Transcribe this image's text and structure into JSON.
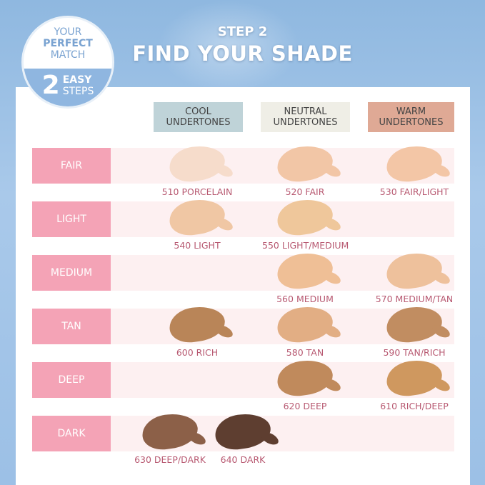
{
  "badge": {
    "line1": "YOUR",
    "line2": "PERFECT",
    "line3": "MATCH",
    "number": "2",
    "easy": "EASY",
    "steps": "STEPS"
  },
  "heading": {
    "step": "STEP 2",
    "title": "FIND YOUR SHADE"
  },
  "columns": [
    {
      "line1": "COOL",
      "line2": "UNDERTONES",
      "color": "#bfd3d8"
    },
    {
      "line1": "NEUTRAL",
      "line2": "UNDERTONES",
      "color": "#efeee6"
    },
    {
      "line1": "WARM",
      "line2": "UNDERTONES",
      "color": "#dfa995"
    }
  ],
  "rows": [
    "FAIR",
    "LIGHT",
    "MEDIUM",
    "TAN",
    "DEEP",
    "DARK"
  ],
  "shades": [
    {
      "name": "510 PORCELAIN",
      "row": "FAIR",
      "column": "COOL",
      "color": "#f6dccb"
    },
    {
      "name": "520 FAIR",
      "row": "FAIR",
      "column": "NEUTRAL",
      "color": "#f2c6a6"
    },
    {
      "name": "530 FAIR/LIGHT",
      "row": "FAIR",
      "column": "WARM",
      "color": "#f3c6a6"
    },
    {
      "name": "540 LIGHT",
      "row": "LIGHT",
      "column": "COOL",
      "color": "#f0c7a4"
    },
    {
      "name": "550 LIGHT/MEDIUM",
      "row": "LIGHT",
      "column": "NEUTRAL",
      "color": "#efc79b"
    },
    {
      "name": "560 MEDIUM",
      "row": "MEDIUM",
      "column": "NEUTRAL",
      "color": "#efbf96"
    },
    {
      "name": "570 MEDIUM/TAN",
      "row": "MEDIUM",
      "column": "WARM",
      "color": "#eec19c"
    },
    {
      "name": "600 RICH",
      "row": "TAN",
      "column": "COOL",
      "color": "#b98558"
    },
    {
      "name": "580 TAN",
      "row": "TAN",
      "column": "NEUTRAL",
      "color": "#e2ae84"
    },
    {
      "name": "590 TAN/RICH",
      "row": "TAN",
      "column": "WARM",
      "color": "#c18d61"
    },
    {
      "name": "620 DEEP",
      "row": "DEEP",
      "column": "NEUTRAL",
      "color": "#c08a5c"
    },
    {
      "name": "610 RICH/DEEP",
      "row": "DEEP",
      "column": "WARM",
      "color": "#cf985f"
    },
    {
      "name": "630 DEEP/DARK",
      "row": "DARK",
      "column": "COOL",
      "color": "#8c6048"
    },
    {
      "name": "640 DARK",
      "row": "DARK",
      "column": "COOL",
      "color": "#5e3e30"
    }
  ]
}
